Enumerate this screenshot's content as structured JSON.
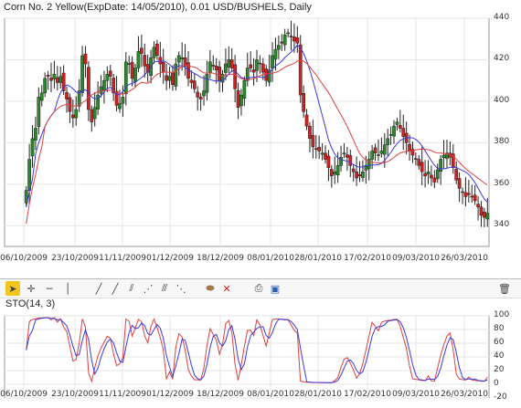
{
  "title": "Corn  No. 2 Yellow(ExpDate: 14/05/2010), 0.01 USD/BUSHELS, Daily",
  "indicator_label": "STO(14, 3)",
  "toolbar": {
    "icons": [
      "cursor-icon",
      "crosshair-icon",
      "horizontal-line-icon",
      "vertical-line-icon",
      "trend-line-icon",
      "ray-line-icon",
      "parallel-channel-icon",
      "fibonacci-fan-icon",
      "fibonacci-arcs-icon",
      "andrews-pitchfork-icon",
      "text-note-icon",
      "delete-object-icon",
      "print-icon",
      "save-icon",
      "trash-icon"
    ]
  },
  "colors": {
    "up": "#2a8a2a",
    "down": "#d22020",
    "ma_fast": "#3a3adc",
    "ma_slow": "#e04040",
    "grid": "#e6e6e6"
  },
  "chart_data": [
    {
      "type": "candlestick",
      "title": "Corn  No. 2 Yellow(ExpDate: 14/05/2010), 0.01 USD/BUSHELS, Daily",
      "xlabel": "",
      "ylabel": "",
      "ylim": [
        330,
        440
      ],
      "y_ticks": [
        340,
        360,
        380,
        400,
        420,
        440
      ],
      "x_tick_labels": [
        "06/10/2009",
        "23/10/2009",
        "11/11/2009",
        "01/12/2009",
        "18/12/2009",
        "08/01/2010",
        "28/01/2010",
        "17/02/2010",
        "09/03/2010",
        "26/03/2010"
      ],
      "grid": true,
      "close": [
        357,
        372,
        382,
        387,
        402,
        404,
        411,
        412,
        410,
        413,
        409,
        412,
        405,
        401,
        395,
        392,
        396,
        405,
        422,
        418,
        396,
        390,
        397,
        403,
        407,
        410,
        413,
        412,
        404,
        398,
        399,
        402,
        419,
        418,
        411,
        416,
        424,
        423,
        417,
        414,
        421,
        426,
        422,
        418,
        414,
        410,
        412,
        408,
        418,
        422,
        421,
        417,
        411,
        409,
        406,
        402,
        401,
        405,
        413,
        419,
        417,
        415,
        410,
        413,
        418,
        420,
        416,
        406,
        397,
        403,
        410,
        416,
        416,
        414,
        420,
        418,
        414,
        410,
        415,
        422,
        425,
        427,
        428,
        432,
        433,
        431,
        429,
        428,
        403,
        395,
        388,
        382,
        378,
        377,
        376,
        375,
        372,
        368,
        364,
        366,
        369,
        373,
        375,
        373,
        369,
        366,
        363,
        364,
        366,
        369,
        372,
        376,
        375,
        374,
        376,
        379,
        382,
        384,
        388,
        390,
        387,
        383,
        380,
        376,
        374,
        372,
        369,
        366,
        364,
        366,
        363,
        361,
        367,
        372,
        374,
        375,
        373,
        368,
        362,
        358,
        356,
        354,
        355,
        354,
        352,
        349,
        345,
        344,
        346
      ]
    },
    {
      "type": "line",
      "title": "STO(14, 3)",
      "ylim": [
        -20,
        100
      ],
      "y_ticks": [
        -20,
        0,
        20,
        40,
        60,
        80,
        100
      ],
      "x_tick_labels": [
        "06/10/2009",
        "23/10/2009",
        "11/11/2009",
        "01/12/2009",
        "18/12/2009",
        "08/01/2010",
        "28/01/2010",
        "17/02/2010",
        "09/03/2010",
        "26/03/2010"
      ]
    }
  ]
}
